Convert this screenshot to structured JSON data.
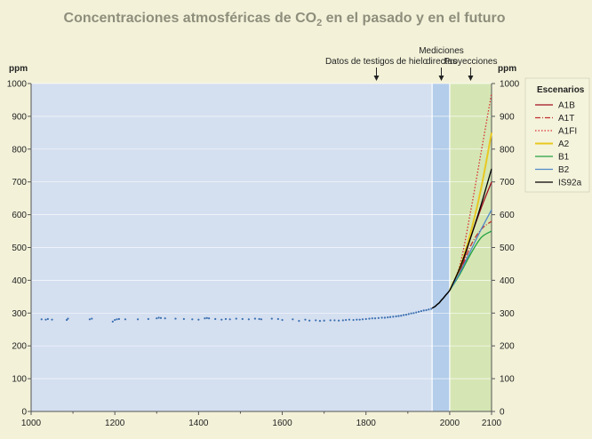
{
  "chart_data": {
    "type": "line",
    "title": {
      "main": "Concentraciones atmosféricas de CO",
      "sub": "2",
      "rest": " en el pasado y en el futuro"
    },
    "ylabel_left": "ppm",
    "ylabel_right": "ppm",
    "xlim": [
      1000,
      2100
    ],
    "ylim": [
      0,
      1000
    ],
    "x_ticks": [
      1000,
      1200,
      1400,
      1600,
      1800,
      2000,
      2100
    ],
    "y_ticks": [
      0,
      100,
      200,
      300,
      400,
      500,
      600,
      700,
      800,
      900,
      1000
    ],
    "grid": "horizontal",
    "regions": [
      {
        "name": "ice-core",
        "x_start": 1000,
        "x_end": 1958,
        "color": "#d4dff0"
      },
      {
        "name": "direct",
        "x_start": 1958,
        "x_end": 2000,
        "color": "#b3cdea"
      },
      {
        "name": "projections",
        "x_start": 2000,
        "x_end": 2100,
        "color": "#d5e6b4"
      }
    ],
    "annotations": [
      {
        "name": "ice-core",
        "lines": [
          "Datos de testigos de hielo"
        ],
        "x": 1825
      },
      {
        "name": "direct",
        "lines": [
          "Mediciones",
          "directas"
        ],
        "x": 1980
      },
      {
        "name": "projections",
        "lines": [
          "Proyecciones"
        ],
        "x": 2050
      }
    ],
    "ice_core_points": [
      [
        1025,
        281
      ],
      [
        1035,
        280
      ],
      [
        1040,
        282
      ],
      [
        1050,
        280
      ],
      [
        1085,
        279
      ],
      [
        1088,
        283
      ],
      [
        1140,
        281
      ],
      [
        1145,
        283
      ],
      [
        1195,
        274
      ],
      [
        1200,
        279
      ],
      [
        1205,
        281
      ],
      [
        1210,
        282
      ],
      [
        1225,
        281
      ],
      [
        1255,
        281
      ],
      [
        1280,
        282
      ],
      [
        1300,
        284
      ],
      [
        1305,
        286
      ],
      [
        1310,
        285
      ],
      [
        1320,
        284
      ],
      [
        1345,
        283
      ],
      [
        1365,
        282
      ],
      [
        1385,
        281
      ],
      [
        1400,
        280
      ],
      [
        1415,
        284
      ],
      [
        1420,
        285
      ],
      [
        1425,
        284
      ],
      [
        1440,
        282
      ],
      [
        1455,
        280
      ],
      [
        1465,
        282
      ],
      [
        1475,
        281
      ],
      [
        1490,
        283
      ],
      [
        1505,
        282
      ],
      [
        1520,
        281
      ],
      [
        1535,
        283
      ],
      [
        1545,
        282
      ],
      [
        1550,
        281
      ],
      [
        1575,
        283
      ],
      [
        1590,
        282
      ],
      [
        1600,
        279
      ],
      [
        1625,
        281
      ],
      [
        1640,
        276
      ],
      [
        1655,
        280
      ],
      [
        1665,
        277
      ],
      [
        1680,
        278
      ],
      [
        1690,
        276
      ],
      [
        1700,
        277
      ],
      [
        1715,
        278
      ],
      [
        1725,
        278
      ],
      [
        1735,
        277
      ],
      [
        1745,
        278
      ],
      [
        1752,
        279
      ],
      [
        1760,
        280
      ],
      [
        1770,
        279
      ],
      [
        1778,
        280
      ],
      [
        1785,
        280
      ],
      [
        1792,
        281
      ],
      [
        1800,
        282
      ],
      [
        1808,
        283
      ],
      [
        1815,
        284
      ],
      [
        1822,
        284
      ],
      [
        1830,
        285
      ],
      [
        1838,
        286
      ],
      [
        1845,
        286
      ],
      [
        1852,
        287
      ],
      [
        1858,
        288
      ],
      [
        1865,
        289
      ],
      [
        1872,
        290
      ],
      [
        1878,
        291
      ],
      [
        1884,
        292
      ],
      [
        1890,
        294
      ],
      [
        1896,
        295
      ],
      [
        1902,
        297
      ],
      [
        1908,
        299
      ],
      [
        1914,
        300
      ],
      [
        1920,
        302
      ],
      [
        1926,
        304
      ],
      [
        1932,
        306
      ],
      [
        1938,
        308
      ],
      [
        1944,
        309
      ],
      [
        1950,
        311
      ],
      [
        1956,
        313
      ]
    ],
    "direct_series": {
      "x": [
        1958,
        1965,
        1970,
        1975,
        1980,
        1985,
        1990,
        1995,
        2000
      ],
      "values": [
        315,
        320,
        326,
        331,
        339,
        346,
        354,
        361,
        369
      ],
      "color": "#000000"
    },
    "series": [
      {
        "name": "A1B",
        "color": "#a01020",
        "dash": "solid",
        "x": [
          2000,
          2025,
          2050,
          2075,
          2100
        ],
        "values": [
          369,
          430,
          530,
          620,
          700
        ]
      },
      {
        "name": "A1T",
        "color": "#c03030",
        "dash": "dashdot",
        "x": [
          2000,
          2025,
          2050,
          2075,
          2100
        ],
        "values": [
          369,
          425,
          505,
          555,
          580
        ]
      },
      {
        "name": "A1FI",
        "color": "#d83030",
        "dash": "dotted",
        "x": [
          2000,
          2025,
          2050,
          2075,
          2100
        ],
        "values": [
          369,
          450,
          610,
          790,
          970
        ]
      },
      {
        "name": "A2",
        "color": "#e8c820",
        "dash": "solid",
        "x": [
          2000,
          2025,
          2050,
          2075,
          2100
        ],
        "values": [
          369,
          440,
          545,
          680,
          850
        ]
      },
      {
        "name": "B1",
        "color": "#20a040",
        "dash": "solid",
        "x": [
          2000,
          2025,
          2050,
          2075,
          2100
        ],
        "values": [
          369,
          420,
          480,
          530,
          550
        ]
      },
      {
        "name": "B2",
        "color": "#5088c8",
        "dash": "solid",
        "x": [
          2000,
          2025,
          2050,
          2075,
          2100
        ],
        "values": [
          369,
          425,
          490,
          555,
          615
        ]
      },
      {
        "name": "IS92a",
        "color": "#000000",
        "dash": "solid",
        "x": [
          2000,
          2025,
          2050,
          2075,
          2100
        ],
        "values": [
          369,
          440,
          530,
          630,
          740
        ]
      }
    ],
    "legend": {
      "title": "Escenarios",
      "position": "right"
    }
  }
}
